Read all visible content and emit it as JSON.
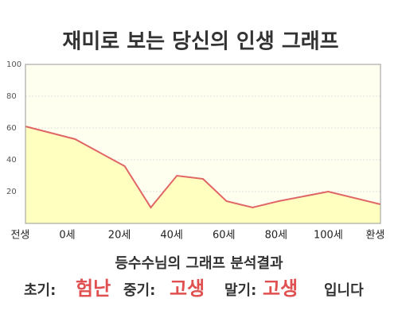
{
  "chart_data": {
    "type": "line",
    "title": "재미로 보는 당신의 인생 그래프",
    "x": [
      -16,
      3,
      22,
      32,
      42,
      52,
      61,
      71,
      81,
      100,
      120
    ],
    "values": [
      61,
      53,
      36,
      10,
      30,
      28,
      14,
      10,
      14,
      20,
      12
    ],
    "color": "#e06666",
    "area_color": "#ffffc0",
    "area": true,
    "xlim": [
      -16,
      120
    ],
    "xticks": [
      {
        "value": -18,
        "label": "전생"
      },
      {
        "value": 0,
        "label": "0세"
      },
      {
        "value": 20,
        "label": "20세"
      },
      {
        "value": 40,
        "label": "40세"
      },
      {
        "value": 60,
        "label": "60세"
      },
      {
        "value": 80,
        "label": "80세"
      },
      {
        "value": 100,
        "label": "100세"
      },
      {
        "value": 118,
        "label": "환생"
      }
    ],
    "ylim": [
      0,
      100
    ],
    "yticks": [
      20,
      40,
      60,
      80,
      100
    ],
    "grid": true
  },
  "summary": {
    "heading": "등수수님의 그래프 분석결과",
    "early_label": "초기:",
    "early": "험난",
    "middle_label": "중기:",
    "middle": "고생",
    "late_label": "말기:",
    "late": "고생",
    "ending": "입니다"
  }
}
